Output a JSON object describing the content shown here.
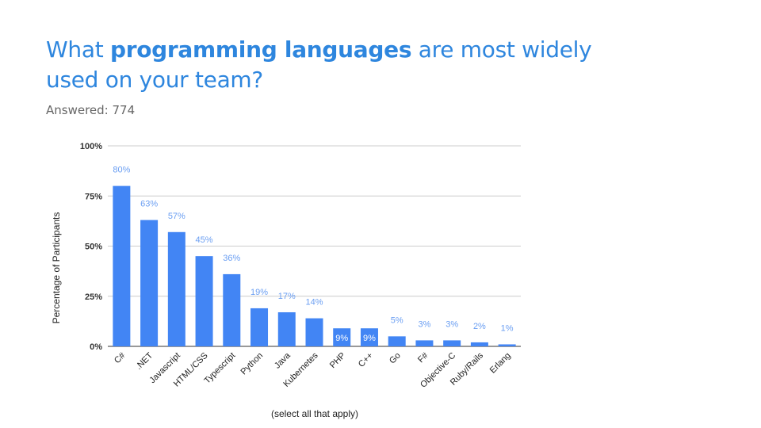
{
  "slide": {
    "title_pre": "What ",
    "title_bold": "programming languages",
    "title_post": " are most widely used on your team?",
    "answered": "Answered: 774"
  },
  "chart_data": {
    "type": "bar",
    "categories": [
      "C#",
      ".NET",
      "Javascript",
      "HTML/CSS",
      "Typescript",
      "Python",
      "Java",
      "Kubernetes",
      "PHP",
      "C++",
      "Go",
      "F#",
      "Objective-C",
      "Ruby/Rails",
      "Erlang"
    ],
    "values": [
      80,
      63,
      57,
      45,
      36,
      19,
      17,
      14,
      9,
      9,
      5,
      3,
      3,
      2,
      1
    ],
    "data_labels": [
      "80%",
      "63%",
      "57%",
      "45%",
      "36%",
      "19%",
      "17%",
      "14%",
      "9%",
      "9%",
      "5%",
      "3%",
      "3%",
      "2%",
      "1%"
    ],
    "y_ticks": [
      0,
      25,
      50,
      75,
      100
    ],
    "y_tick_labels": [
      "0%",
      "25%",
      "50%",
      "75%",
      "100%"
    ],
    "ylim": [
      0,
      100
    ],
    "xlabel": "(select all that apply)",
    "ylabel": "Percentage of Participants",
    "grid": true,
    "bar_color": "#4285f4",
    "label_color": "#6a9ef2"
  }
}
